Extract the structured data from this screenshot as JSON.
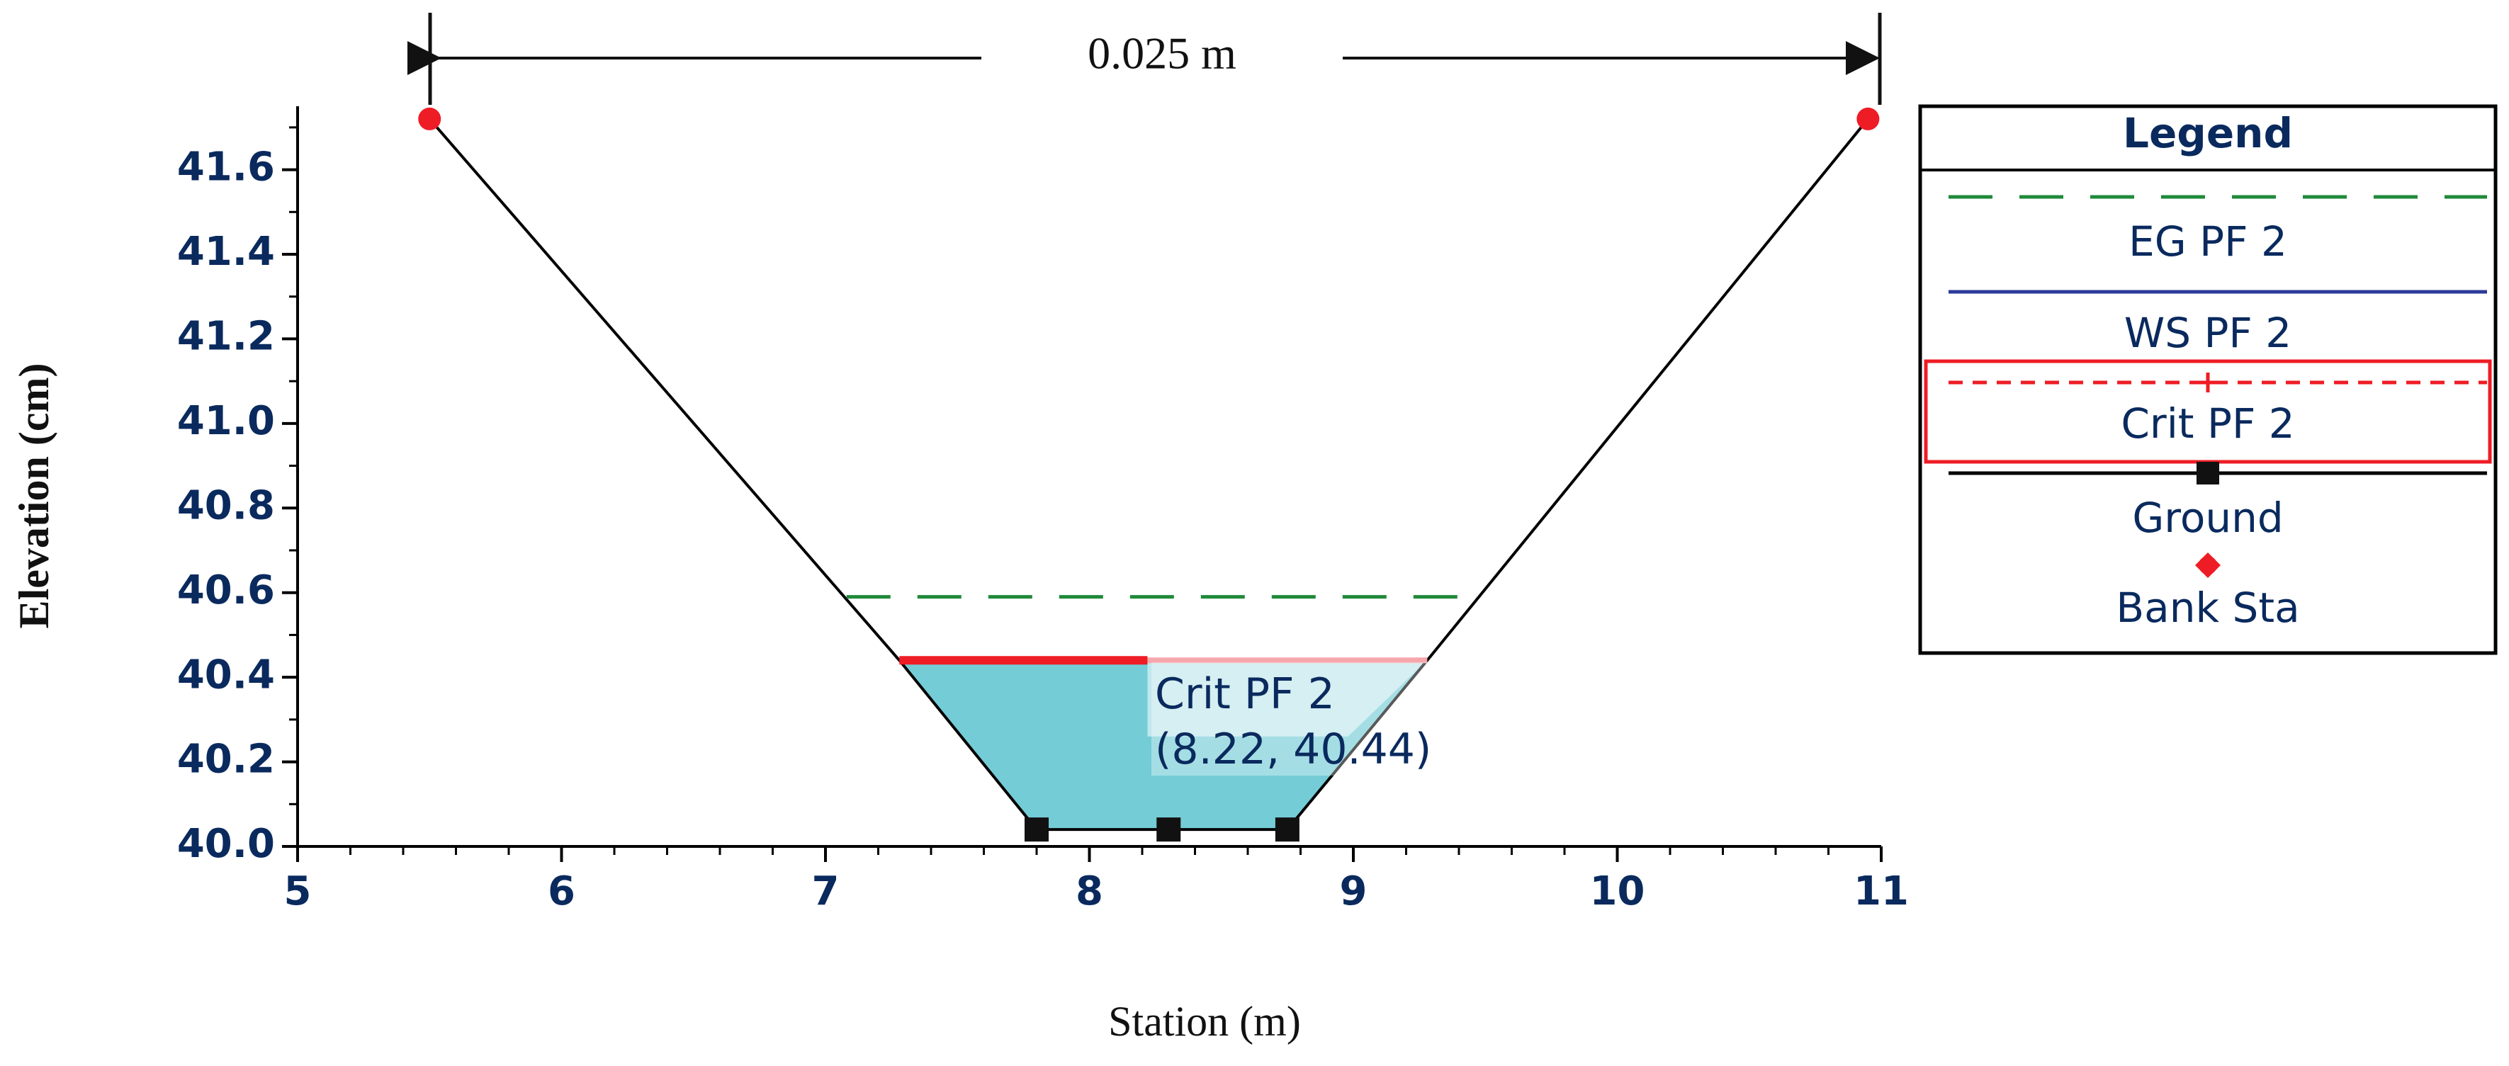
{
  "chart_data": {
    "type": "line",
    "xlabel": "Station (m)",
    "ylabel": "Elevation (cm)",
    "xlim": [
      5,
      11
    ],
    "ylim": [
      40.0,
      41.75
    ],
    "x_ticks": [
      5,
      6,
      7,
      8,
      9,
      10,
      11
    ],
    "y_ticks": [
      40.0,
      40.2,
      40.4,
      40.6,
      40.8,
      41.0,
      41.2,
      41.4,
      41.6
    ],
    "y_tick_labels": [
      "40.0",
      "40.2",
      "40.4",
      "40.6",
      "40.8",
      "41.0",
      "41.2",
      "41.4",
      "41.6"
    ],
    "grid": false,
    "dimension_label": "0.025 m",
    "ground": {
      "name": "Ground",
      "points": [
        [
          5.5,
          41.72
        ],
        [
          7.28,
          40.44
        ],
        [
          7.8,
          40.04
        ],
        [
          8.3,
          40.04
        ],
        [
          8.75,
          40.04
        ],
        [
          9.28,
          40.44
        ],
        [
          10.95,
          41.72
        ]
      ],
      "markers": [
        [
          7.8,
          40.04
        ],
        [
          8.3,
          40.04
        ],
        [
          8.75,
          40.04
        ]
      ],
      "color": "#000000"
    },
    "bank_stations": {
      "name": "Bank Sta",
      "points": [
        [
          5.5,
          41.72
        ],
        [
          10.95,
          41.72
        ]
      ],
      "color": "#ee1c25"
    },
    "eg": {
      "name": "EG PF 2",
      "x": [
        7.08,
        9.48
      ],
      "y": 40.59,
      "color": "#1f8a3a"
    },
    "ws": {
      "name": "WS PF 2",
      "x": [
        7.28,
        9.28
      ],
      "y": 40.44,
      "color": "#2a3a9a"
    },
    "crit": {
      "name": "Crit PF 2",
      "x": [
        7.28,
        9.28
      ],
      "y": 40.44,
      "color": "#ee1c25"
    },
    "water_fill_color": "#74ccd6",
    "legend": {
      "title": "Legend",
      "position": "right",
      "entries": [
        "EG PF 2",
        "WS PF 2",
        "Crit PF 2",
        "Ground",
        "Bank Sta"
      ],
      "highlighted": "Crit PF 2"
    },
    "annotation": {
      "line1": "Crit PF 2",
      "line2": "(8.22, 40.44)",
      "x": 8.22,
      "y": 40.44
    }
  }
}
